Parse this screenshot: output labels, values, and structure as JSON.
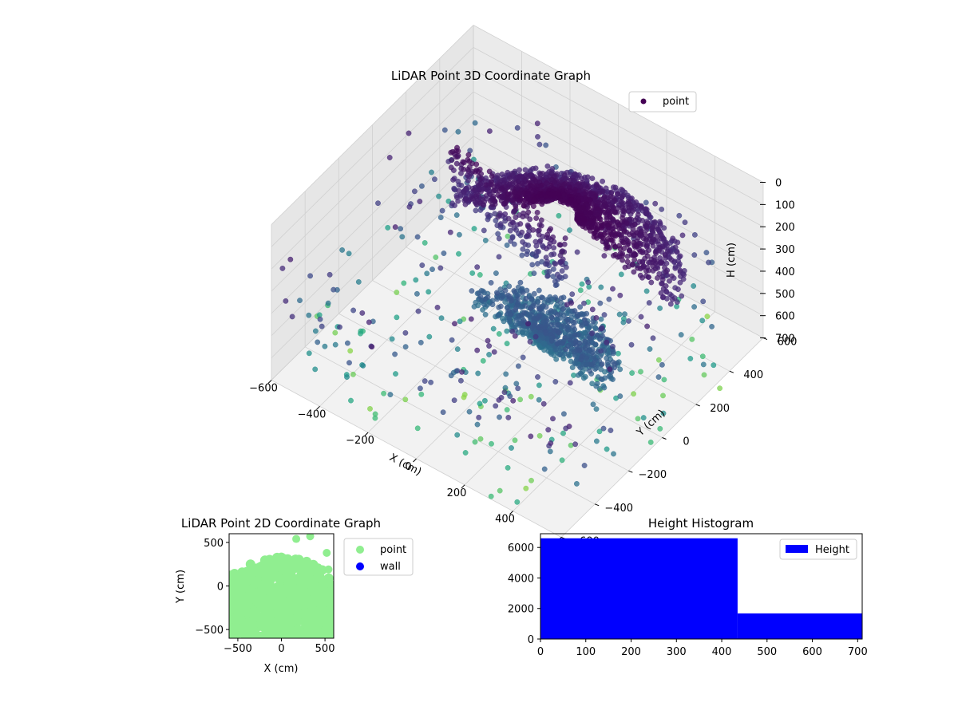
{
  "chart_data": [
    {
      "type": "scatter",
      "title": "LiDAR Point 3D Coordinate Graph",
      "xlabel": "X (cm)",
      "ylabel": "Y (cm)",
      "zlabel": "H (cm)",
      "projection": "3d",
      "z_inverted": true,
      "xlim": [
        -600,
        600
      ],
      "ylim": [
        -600,
        600
      ],
      "zlim": [
        0,
        700
      ],
      "x_ticks": [
        "−600",
        "−400",
        "−200",
        "0",
        "200",
        "400",
        "600"
      ],
      "y_ticks": [
        "−600",
        "−400",
        "−200",
        "0",
        "200",
        "400",
        "600"
      ],
      "z_ticks": [
        "0",
        "100",
        "200",
        "300",
        "400",
        "500",
        "600",
        "700"
      ],
      "legend": [
        "point"
      ],
      "legend_position": "top-right",
      "colormap": "viridis",
      "grid": true,
      "series": [
        {
          "name": "point",
          "description_shape": "upper dome of dense points at low height plus a lower fan near floor, sparse scattered points"
        }
      ]
    },
    {
      "type": "scatter",
      "title": "LiDAR Point 2D Coordinate Graph",
      "xlabel": "X (cm)",
      "ylabel": "Y (cm)",
      "xlim": [
        -600,
        600
      ],
      "ylim": [
        -600,
        600
      ],
      "x_ticks": [
        "−500",
        "0",
        "500"
      ],
      "y_ticks": [
        "−500",
        "0",
        "500"
      ],
      "legend": [
        "point",
        "wall"
      ],
      "legend_position": "outside-right",
      "series": [
        {
          "name": "point",
          "color": "#90ee90"
        },
        {
          "name": "wall",
          "color": "#0000ff"
        }
      ]
    },
    {
      "type": "bar",
      "title": "Height Histogram",
      "xlim": [
        0,
        710
      ],
      "ylim": [
        0,
        6900
      ],
      "x_ticks": [
        "0",
        "100",
        "200",
        "300",
        "400",
        "500",
        "600",
        "700"
      ],
      "y_ticks": [
        "0",
        "2000",
        "4000",
        "6000"
      ],
      "legend": [
        "Height"
      ],
      "legend_position": "top-right",
      "bins": [
        {
          "start": 0,
          "end": 435,
          "count": 6600
        },
        {
          "start": 435,
          "end": 710,
          "count": 1680
        }
      ],
      "color": "#0000ff"
    }
  ]
}
